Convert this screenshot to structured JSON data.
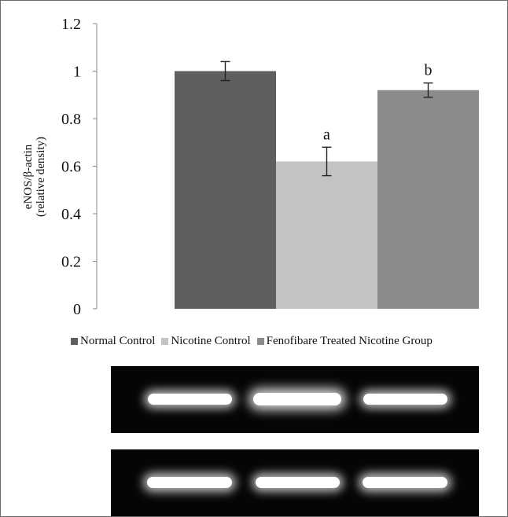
{
  "chart_data": {
    "type": "bar",
    "categories": [
      "Normal Control",
      "Nicotine Control",
      "Fenofibare Treated Nicotine Group"
    ],
    "values": [
      1.0,
      0.62,
      0.92
    ],
    "errors": [
      0.04,
      0.06,
      0.03
    ],
    "annotations": [
      "",
      "a",
      "b"
    ],
    "colors": [
      "#5f5f5f",
      "#c3c3c3",
      "#8c8c8c"
    ],
    "ylabel_line1": "eNOS/β-actin",
    "ylabel_line2": "(relative density)",
    "ylim": [
      0,
      1.2
    ],
    "yticks": [
      "0",
      "0.2",
      "0.4",
      "0.6",
      "0.8",
      "1",
      "1.2"
    ],
    "ytick_values": [
      0,
      0.2,
      0.4,
      0.6,
      0.8,
      1.0,
      1.2
    ],
    "grid": false,
    "legend_position": "bottom"
  },
  "blots": [
    {
      "intensities": [
        0.75,
        1.0,
        0.75
      ]
    },
    {
      "intensities": [
        0.8,
        0.75,
        0.8
      ]
    }
  ]
}
